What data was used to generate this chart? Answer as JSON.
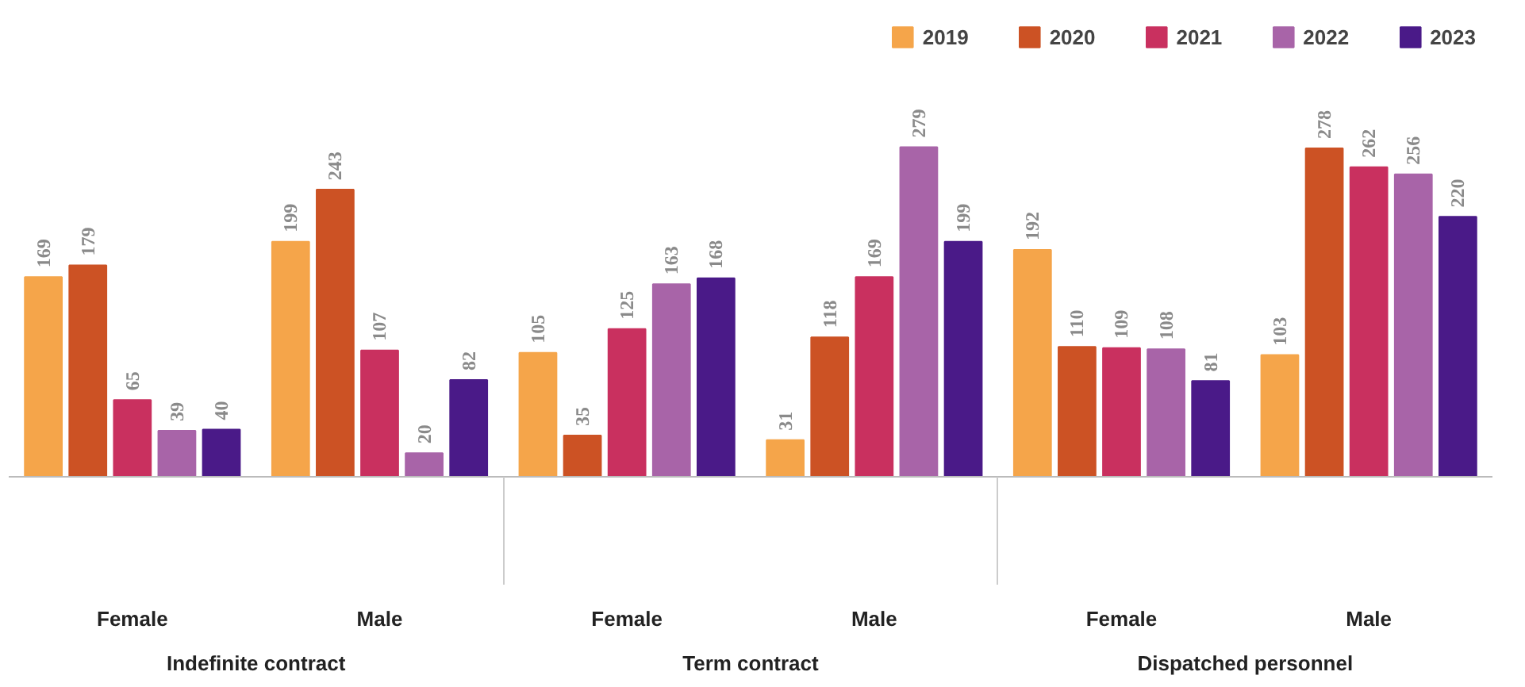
{
  "chart_data": {
    "type": "bar",
    "categories": [
      "Female",
      "Male",
      "Female",
      "Male",
      "Female",
      "Male"
    ],
    "series": [
      {
        "name": "2019",
        "color": "#f5a54a",
        "values": [
          169,
          199,
          105,
          31,
          192,
          103
        ]
      },
      {
        "name": "2020",
        "color": "#cc5224",
        "values": [
          179,
          243,
          35,
          118,
          110,
          278
        ]
      },
      {
        "name": "2021",
        "color": "#c9305f",
        "values": [
          65,
          107,
          125,
          169,
          109,
          262
        ]
      },
      {
        "name": "2022",
        "color": "#a864a8",
        "values": [
          39,
          20,
          163,
          279,
          108,
          256
        ]
      },
      {
        "name": "2023",
        "color": "#4a1a88",
        "values": [
          40,
          82,
          168,
          199,
          81,
          220
        ]
      }
    ],
    "annotations": [
      "Indefinite contract",
      "Term contract",
      "Dispatched personnel"
    ],
    "data_labels": true,
    "legend": "top right",
    "grid": false
  }
}
